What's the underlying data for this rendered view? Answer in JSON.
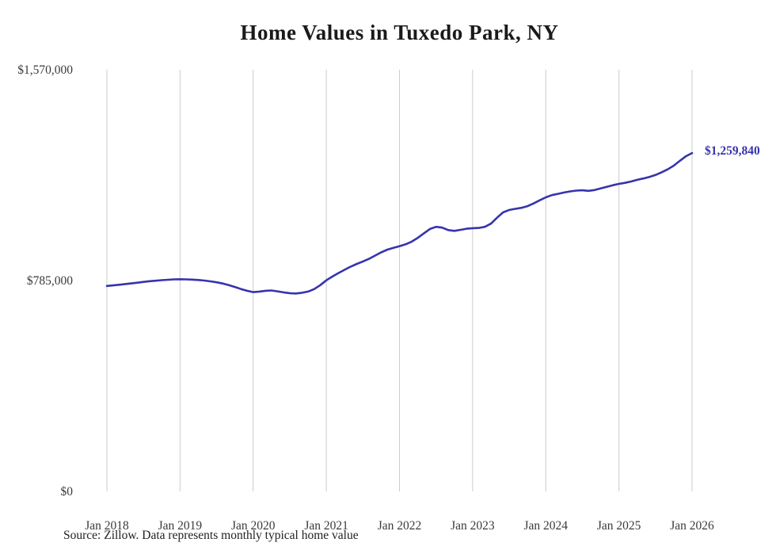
{
  "title": "Home Values in Tuxedo Park, NY",
  "source_note": "Source: Zillow. Data represents monthly typical home value",
  "chart_data": {
    "type": "line",
    "series_name": "Monthly typical home value",
    "x_tick_labels": [
      "Jan 2018",
      "Jan 2019",
      "Jan 2020",
      "Jan 2021",
      "Jan 2022",
      "Jan 2023",
      "Jan 2024",
      "Jan 2025",
      "Jan 2026"
    ],
    "months_per_tick": 12,
    "values": [
      765000,
      767000,
      769500,
      772000,
      774500,
      777000,
      780000,
      782500,
      784500,
      786500,
      788000,
      789500,
      790000,
      789500,
      788500,
      787000,
      785000,
      782000,
      778500,
      774000,
      768000,
      761000,
      753500,
      747000,
      742000,
      744000,
      747000,
      748000,
      745000,
      741000,
      738000,
      737000,
      739500,
      744000,
      753000,
      768000,
      786000,
      800000,
      813000,
      825000,
      837000,
      847000,
      856000,
      866000,
      878000,
      890000,
      900000,
      907000,
      913000,
      920000,
      930000,
      944000,
      961000,
      977000,
      985000,
      982000,
      973000,
      970000,
      974000,
      978000,
      980000,
      981000,
      985000,
      997000,
      1019000,
      1039000,
      1048000,
      1052000,
      1056000,
      1062000,
      1072000,
      1084000,
      1095000,
      1103000,
      1108000,
      1113000,
      1117000,
      1120000,
      1121000,
      1119000,
      1122000,
      1128000,
      1134000,
      1140000,
      1145000,
      1149000,
      1154000,
      1160000,
      1165000,
      1171000,
      1178000,
      1188000,
      1199000,
      1213000,
      1231000,
      1248000,
      1259840
    ],
    "ylim": [
      0,
      1570000
    ],
    "y_ticks": [
      {
        "value": 1570000,
        "label": "$1,570,000"
      },
      {
        "value": 785000,
        "label": "$785,000"
      },
      {
        "value": 0,
        "label": "$0"
      }
    ],
    "end_label": "$1,259,840",
    "line_color": "#3634ad",
    "grid_color": "#cccccc",
    "grid": "vertical-only",
    "legend": "none",
    "xlabel": "",
    "ylabel": ""
  }
}
